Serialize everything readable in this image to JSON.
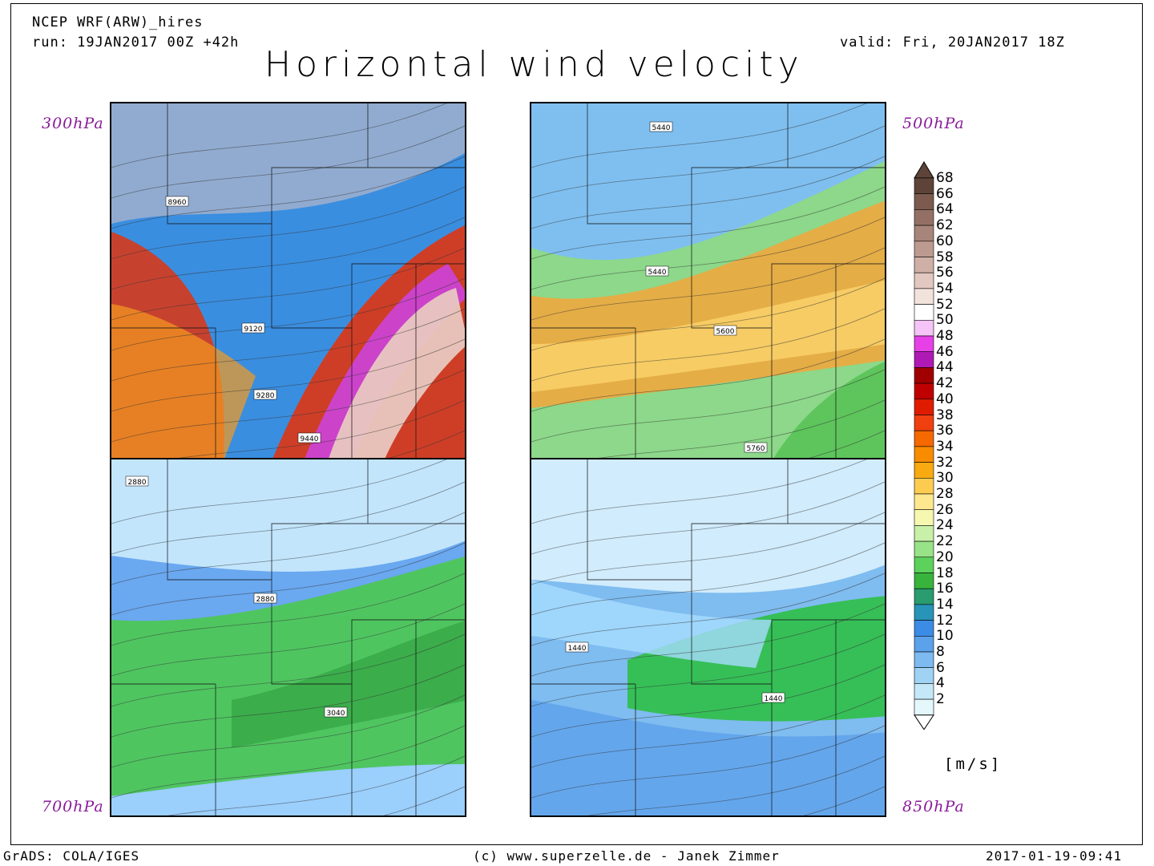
{
  "header": {
    "model": "NCEP WRF(ARW)_hires",
    "run": "run: 19JAN2017 00Z +42h",
    "valid": "valid: Fri, 20JAN2017 18Z",
    "title": "Horizontal wind velocity"
  },
  "panels": [
    {
      "level": "300hPa",
      "labels": [
        "8960",
        "9120",
        "9280",
        "9440"
      ],
      "theme": "jet",
      "colors": {
        "base": "#3a8ee0",
        "a": "#d63a1c",
        "b": "#e8c8c0",
        "c": "#cc44dd",
        "d": "#f59b1f"
      }
    },
    {
      "level": "500hPa",
      "labels": [
        "5440",
        "5440",
        "5600",
        "5760"
      ],
      "theme": "mid",
      "colors": {
        "base": "#7fbff0",
        "a": "#f4a63a",
        "b": "#8fdc78",
        "c": "#ffd870",
        "d": "#52c050"
      }
    },
    {
      "level": "700hPa",
      "labels": [
        "2880",
        "2880",
        "3040"
      ],
      "theme": "low",
      "colors": {
        "base": "#6aa8f0",
        "a": "#4cc850",
        "b": "#d8f4ff",
        "c": "#2f9c3e",
        "d": "#a8d8ff"
      }
    },
    {
      "level": "850hPa",
      "labels": [
        "1440",
        "1440"
      ],
      "theme": "sfc",
      "colors": {
        "base": "#7fbcf0",
        "a": "#2fbf46",
        "b": "#e6f8ff",
        "c": "#4a90e8",
        "d": "#a8dcff"
      }
    }
  ],
  "colorbar": {
    "units": "[m/s]",
    "ticks": [
      "68",
      "66",
      "64",
      "62",
      "60",
      "58",
      "56",
      "54",
      "52",
      "50",
      "48",
      "46",
      "44",
      "42",
      "40",
      "38",
      "36",
      "34",
      "32",
      "30",
      "28",
      "26",
      "24",
      "22",
      "20",
      "18",
      "16",
      "14",
      "12",
      "10",
      "8",
      "6",
      "4",
      "2"
    ],
    "colors": [
      "#5e4438",
      "#7c5a4e",
      "#947064",
      "#a8857a",
      "#bc9a90",
      "#cfb0a6",
      "#e2c8c0",
      "#f2e2dc",
      "#ffffff",
      "#f6c4f6",
      "#e640e6",
      "#b01ab4",
      "#a00000",
      "#c00000",
      "#e01c00",
      "#f04010",
      "#f66800",
      "#f88c00",
      "#f8aa10",
      "#fccc50",
      "#fde890",
      "#f6f8b0",
      "#c8f0a8",
      "#98e288",
      "#5cd25c",
      "#38b43c",
      "#2a9c70",
      "#2894b8",
      "#3c8ce6",
      "#5ca2ea",
      "#7cbaf0",
      "#a0d2f4",
      "#c4e8f8",
      "#e4f8fc"
    ]
  },
  "footer": {
    "left": "GrADS: COLA/IGES",
    "center": "(c) www.superzelle.de - Janek Zimmer",
    "right": "2017-01-19-09:41"
  }
}
